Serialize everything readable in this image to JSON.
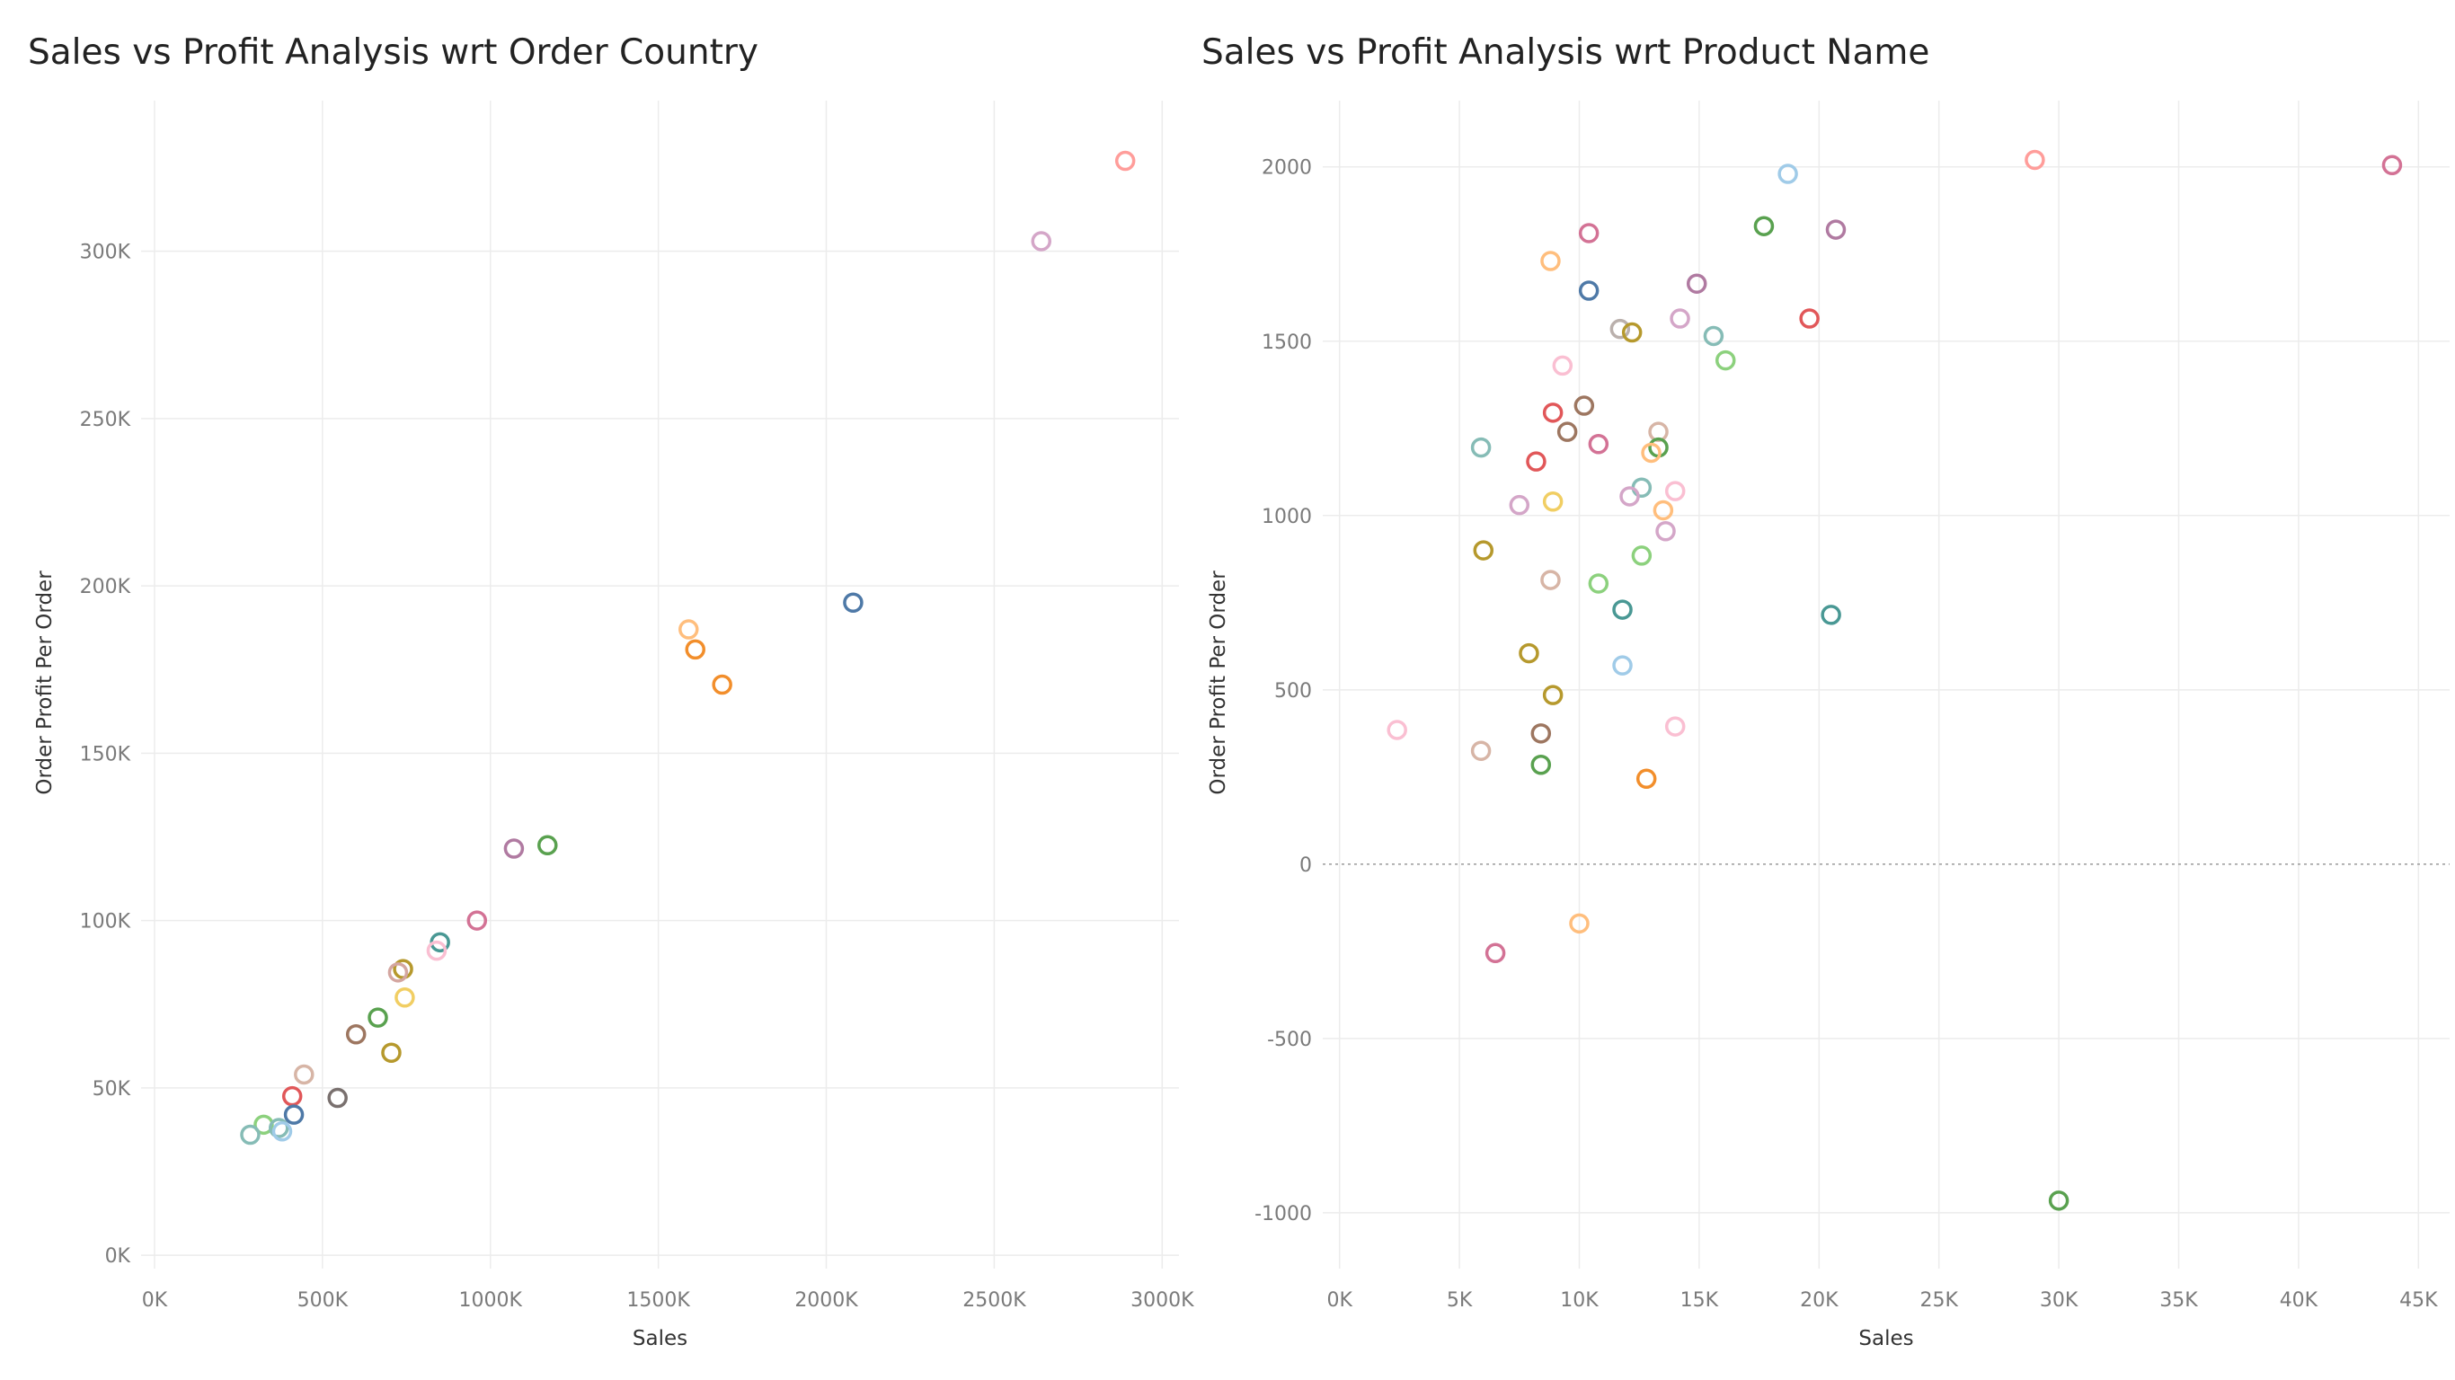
{
  "chart_data": [
    {
      "type": "scatter",
      "title": "Sales vs Profit Analysis wrt Order Country",
      "xlabel": "Sales",
      "ylabel": "Order Profit Per Order",
      "xlim": [
        -40000,
        3050000
      ],
      "ylim": [
        -4000,
        345000
      ],
      "xticks": [
        0,
        500000,
        1000000,
        1500000,
        2000000,
        2500000,
        3000000
      ],
      "xtick_labels": [
        "0K",
        "500K",
        "1000K",
        "1500K",
        "2000K",
        "2500K",
        "3000K"
      ],
      "yticks": [
        0,
        50000,
        100000,
        150000,
        200000,
        250000,
        300000
      ],
      "ytick_labels": [
        "0K",
        "50K",
        "100K",
        "150K",
        "200K",
        "250K",
        "300K"
      ],
      "grid": true,
      "points": [
        {
          "x": 2890000,
          "y": 327000,
          "color": "#ff9d9a"
        },
        {
          "x": 2640000,
          "y": 303000,
          "color": "#d4a6c8"
        },
        {
          "x": 2080000,
          "y": 195000,
          "color": "#4e79a7"
        },
        {
          "x": 1590000,
          "y": 187000,
          "color": "#ffbe7d"
        },
        {
          "x": 1610000,
          "y": 181000,
          "color": "#f28e2b"
        },
        {
          "x": 1690000,
          "y": 170500,
          "color": "#f28e2b"
        },
        {
          "x": 1170000,
          "y": 122500,
          "color": "#59a14f"
        },
        {
          "x": 1070000,
          "y": 121500,
          "color": "#b07aa1"
        },
        {
          "x": 960000,
          "y": 100000,
          "color": "#d37295"
        },
        {
          "x": 850000,
          "y": 93500,
          "color": "#499894"
        },
        {
          "x": 840000,
          "y": 91000,
          "color": "#fabfd2"
        },
        {
          "x": 740000,
          "y": 85500,
          "color": "#b6992d"
        },
        {
          "x": 725000,
          "y": 84500,
          "color": "#d4a6a0"
        },
        {
          "x": 745000,
          "y": 77000,
          "color": "#f1ce63"
        },
        {
          "x": 665000,
          "y": 71000,
          "color": "#59a14f"
        },
        {
          "x": 600000,
          "y": 66000,
          "color": "#9d7660"
        },
        {
          "x": 705000,
          "y": 60500,
          "color": "#b6992d"
        },
        {
          "x": 445000,
          "y": 54000,
          "color": "#d7b5a6"
        },
        {
          "x": 410000,
          "y": 47500,
          "color": "#e15759"
        },
        {
          "x": 545000,
          "y": 47000,
          "color": "#79706e"
        },
        {
          "x": 415000,
          "y": 42000,
          "color": "#4e79a7"
        },
        {
          "x": 325000,
          "y": 39000,
          "color": "#8cd17d"
        },
        {
          "x": 370000,
          "y": 38000,
          "color": "#86bcb6"
        },
        {
          "x": 380000,
          "y": 37000,
          "color": "#a0cbe8"
        },
        {
          "x": 285000,
          "y": 36000,
          "color": "#86bcb6"
        }
      ]
    },
    {
      "type": "scatter",
      "title": "Sales vs Profit Analysis wrt Product Name",
      "xlabel": "Sales",
      "ylabel": "Order Profit Per Order",
      "xlim": [
        -700,
        46300
      ],
      "ylim": [
        -1160,
        2190
      ],
      "xticks": [
        0,
        5000,
        10000,
        15000,
        20000,
        25000,
        30000,
        35000,
        40000,
        45000
      ],
      "xtick_labels": [
        "0K",
        "5K",
        "10K",
        "15K",
        "20K",
        "25K",
        "30K",
        "35K",
        "40K",
        "45K"
      ],
      "yticks": [
        -1000,
        -500,
        0,
        500,
        1000,
        1500,
        2000
      ],
      "ytick_labels": [
        "-1000",
        "-500",
        "0",
        "500",
        "1000",
        "1500",
        "2000"
      ],
      "grid": true,
      "zero_line": true,
      "points": [
        {
          "x": 29000,
          "y": 2020,
          "color": "#ff9d9a"
        },
        {
          "x": 43900,
          "y": 2005,
          "color": "#d37295"
        },
        {
          "x": 18700,
          "y": 1980,
          "color": "#a0cbe8"
        },
        {
          "x": 17700,
          "y": 1830,
          "color": "#59a14f"
        },
        {
          "x": 20700,
          "y": 1820,
          "color": "#b07aa1"
        },
        {
          "x": 10400,
          "y": 1810,
          "color": "#d37295"
        },
        {
          "x": 8800,
          "y": 1730,
          "color": "#ffbe7d"
        },
        {
          "x": 14900,
          "y": 1665,
          "color": "#b07aa1"
        },
        {
          "x": 10400,
          "y": 1645,
          "color": "#4e79a7"
        },
        {
          "x": 19600,
          "y": 1565,
          "color": "#e15759"
        },
        {
          "x": 14200,
          "y": 1565,
          "color": "#d4a6c8"
        },
        {
          "x": 11700,
          "y": 1535,
          "color": "#bab0ac"
        },
        {
          "x": 12200,
          "y": 1525,
          "color": "#b6992d"
        },
        {
          "x": 15600,
          "y": 1515,
          "color": "#86bcb6"
        },
        {
          "x": 16100,
          "y": 1445,
          "color": "#8cd17d"
        },
        {
          "x": 9300,
          "y": 1430,
          "color": "#fabfd2"
        },
        {
          "x": 10200,
          "y": 1315,
          "color": "#9d7660"
        },
        {
          "x": 8900,
          "y": 1295,
          "color": "#e15759"
        },
        {
          "x": 9500,
          "y": 1240,
          "color": "#9d7660"
        },
        {
          "x": 13300,
          "y": 1240,
          "color": "#d7b5a6"
        },
        {
          "x": 10800,
          "y": 1205,
          "color": "#d37295"
        },
        {
          "x": 5900,
          "y": 1195,
          "color": "#86bcb6"
        },
        {
          "x": 13300,
          "y": 1195,
          "color": "#59a14f"
        },
        {
          "x": 13000,
          "y": 1180,
          "color": "#ffbe7d"
        },
        {
          "x": 8200,
          "y": 1155,
          "color": "#e15759"
        },
        {
          "x": 12600,
          "y": 1080,
          "color": "#86bcb6"
        },
        {
          "x": 14000,
          "y": 1070,
          "color": "#fabfd2"
        },
        {
          "x": 12100,
          "y": 1055,
          "color": "#d4a6c8"
        },
        {
          "x": 8900,
          "y": 1040,
          "color": "#f1ce63"
        },
        {
          "x": 7500,
          "y": 1030,
          "color": "#d4a6c8"
        },
        {
          "x": 13500,
          "y": 1015,
          "color": "#ffbe7d"
        },
        {
          "x": 13600,
          "y": 955,
          "color": "#d4a6c8"
        },
        {
          "x": 6000,
          "y": 900,
          "color": "#b6992d"
        },
        {
          "x": 12600,
          "y": 885,
          "color": "#8cd17d"
        },
        {
          "x": 8800,
          "y": 815,
          "color": "#d7b5a6"
        },
        {
          "x": 10800,
          "y": 805,
          "color": "#8cd17d"
        },
        {
          "x": 11800,
          "y": 730,
          "color": "#499894"
        },
        {
          "x": 20500,
          "y": 715,
          "color": "#499894"
        },
        {
          "x": 7900,
          "y": 605,
          "color": "#b6992d"
        },
        {
          "x": 11800,
          "y": 570,
          "color": "#a0cbe8"
        },
        {
          "x": 8900,
          "y": 485,
          "color": "#b6992d"
        },
        {
          "x": 14000,
          "y": 395,
          "color": "#fabfd2"
        },
        {
          "x": 2400,
          "y": 385,
          "color": "#fabfd2"
        },
        {
          "x": 8400,
          "y": 375,
          "color": "#9d7660"
        },
        {
          "x": 5900,
          "y": 325,
          "color": "#d7b5a6"
        },
        {
          "x": 8400,
          "y": 285,
          "color": "#59a14f"
        },
        {
          "x": 12800,
          "y": 245,
          "color": "#f28e2b"
        },
        {
          "x": 10000,
          "y": -170,
          "color": "#ffbe7d"
        },
        {
          "x": 6500,
          "y": -255,
          "color": "#d37295"
        },
        {
          "x": 30000,
          "y": -965,
          "color": "#59a14f"
        }
      ]
    }
  ]
}
